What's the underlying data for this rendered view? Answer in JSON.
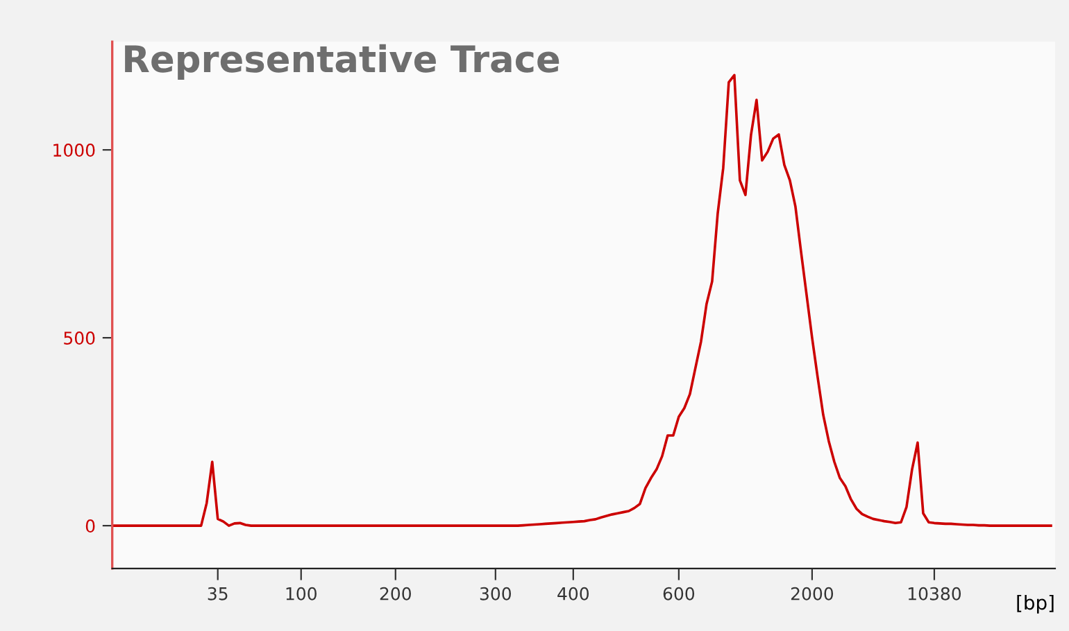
{
  "chart_data": {
    "type": "line",
    "title": "Representative Trace",
    "xlabel": "[bp]",
    "categories": [
      null,
      null,
      null,
      null,
      null,
      null,
      null,
      null,
      null,
      null,
      null,
      null,
      null,
      null,
      null,
      null,
      null,
      null,
      null,
      "35",
      null,
      null,
      null,
      null,
      null,
      null,
      null,
      null,
      null,
      null,
      null,
      null,
      null,
      null,
      "100",
      null,
      null,
      null,
      null,
      null,
      null,
      null,
      null,
      null,
      null,
      null,
      null,
      null,
      null,
      null,
      null,
      "200",
      null,
      null,
      null,
      null,
      null,
      null,
      null,
      null,
      null,
      null,
      null,
      null,
      null,
      null,
      null,
      null,
      null,
      "300",
      null,
      null,
      null,
      null,
      null,
      null,
      null,
      null,
      null,
      null,
      null,
      null,
      null,
      "400",
      null,
      null,
      null,
      null,
      null,
      null,
      null,
      null,
      null,
      null,
      null,
      null,
      null,
      null,
      null,
      null,
      null,
      null,
      "600",
      null,
      null,
      null,
      null,
      null,
      null,
      null,
      null,
      null,
      null,
      null,
      null,
      null,
      null,
      null,
      null,
      null,
      null,
      null,
      null,
      null,
      null,
      null,
      "2000",
      null,
      null,
      null,
      null,
      null,
      null,
      null,
      null,
      null,
      null,
      null,
      null,
      null,
      null,
      null,
      null,
      null,
      null,
      null,
      null,
      null,
      "10380",
      null,
      null,
      null,
      null,
      null,
      null,
      null,
      null,
      null,
      null,
      null,
      null,
      null,
      null,
      null,
      null,
      null,
      null,
      null,
      null,
      null
    ],
    "series": [
      {
        "color": "#cc0000",
        "values": [
          0,
          0,
          0,
          0,
          0,
          0,
          0,
          0,
          0,
          0,
          0,
          0,
          0,
          0,
          0,
          0,
          0,
          60,
          170,
          18,
          11,
          0,
          6,
          7,
          2,
          0,
          0,
          0,
          0,
          0,
          0,
          0,
          0,
          0,
          0,
          0,
          0,
          0,
          0,
          0,
          0,
          0,
          0,
          0,
          0,
          0,
          0,
          0,
          0,
          0,
          0,
          0,
          0,
          0,
          0,
          0,
          0,
          0,
          0,
          0,
          0,
          0,
          0,
          0,
          0,
          0,
          0,
          0,
          0,
          0,
          0,
          0,
          0,
          0,
          1,
          2,
          3,
          4,
          5,
          6,
          7,
          8,
          9,
          10,
          11,
          12,
          15,
          17,
          22,
          26,
          30,
          33,
          36,
          39,
          47,
          58,
          100,
          127,
          150,
          185,
          240,
          240,
          290,
          313,
          350,
          420,
          490,
          590,
          650,
          830,
          952,
          1180,
          1199,
          919,
          880,
          1040,
          1133,
          972,
          995,
          1030,
          1041,
          960,
          919,
          849,
          730,
          615,
          500,
          395,
          295,
          225,
          170,
          127,
          105,
          70,
          45,
          31,
          24,
          18,
          15,
          12,
          10,
          7,
          9,
          50,
          150,
          221,
          33,
          9,
          7,
          6,
          5,
          5,
          4,
          3,
          2,
          2,
          1,
          1,
          0,
          0,
          0,
          0,
          0,
          0,
          0,
          0,
          0,
          0,
          0,
          0
        ]
      }
    ],
    "ylim": [
      -114,
      1288
    ],
    "yticks": [
      0,
      500,
      1000
    ],
    "grid": false,
    "legend": false,
    "marker": "none",
    "line_style": "solid"
  }
}
